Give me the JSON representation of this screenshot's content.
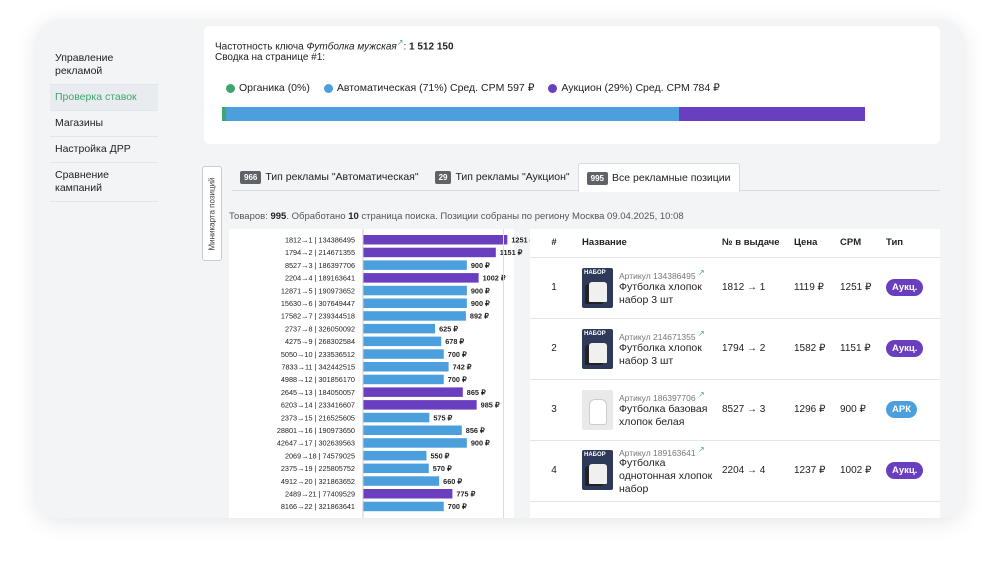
{
  "sidebar": {
    "items": [
      {
        "label": "Управление рекламой"
      },
      {
        "label": "Проверка ставок",
        "active": true
      },
      {
        "label": "Магазины"
      },
      {
        "label": "Настройка ДРР"
      },
      {
        "label": "Сравнение кампаний"
      }
    ]
  },
  "summary": {
    "freq_prefix": "Частотность ключа",
    "keyword": "Футболка мужская",
    "ext_icon": "↗",
    "freq_sep": ":",
    "freq_value": "1 512 150",
    "title": "Сводка на странице #1:",
    "legend": [
      {
        "label": "Органика (0%)",
        "color": "#3fa66b"
      },
      {
        "label": "Автоматическая (71%) Сред. CPM 597 ₽",
        "color": "#4a9fdc"
      },
      {
        "label": "Аукцион (29%) Сред. CPM 784 ₽",
        "color": "#6a3fbf"
      }
    ],
    "bar": [
      {
        "name": "Органика",
        "fraction": 0.006,
        "color": "#3fa66b"
      },
      {
        "name": "Автоматическая",
        "fraction": 0.705,
        "color": "#4a9fdc"
      },
      {
        "name": "Аукцион",
        "fraction": 0.289,
        "color": "#6a3fbf"
      }
    ]
  },
  "minimap": {
    "label": "Миникарта позиций"
  },
  "tabs": [
    {
      "badge": "966",
      "label": "Тип рекламы \"Автоматическая\""
    },
    {
      "badge": "29",
      "label": "Тип рекламы \"Аукцион\""
    },
    {
      "badge": "995",
      "label": "Все рекламные позиции",
      "active": true
    }
  ],
  "info": {
    "p1": "Товаров: ",
    "count": "995",
    "p2": ". Обработано ",
    "pages": "10",
    "p3": " страница поиска. Позиции собраны по региону Москва 09.04.2025, 10:08"
  },
  "colors": {
    "auction": "#6a3fbf",
    "auto": "#4a9fdc",
    "organic": "#3fa66b"
  },
  "chart_data": {
    "type": "bar",
    "orientation": "horizontal",
    "currency": "₽",
    "xlim": [
      0,
      1300
    ],
    "categories": [
      "1812→1 | 134386495",
      "1794→2 | 214671355",
      "8527→3 | 186397706",
      "2204→4 | 189163641",
      "12871→5 | 190973652",
      "15630→6 | 307649447",
      "17582→7 | 239344518",
      "2737→8 | 326050092",
      "4275→9 | 268302584",
      "5050→10 | 233536512",
      "7833→11 | 342442515",
      "4988→12 | 301856170",
      "2645→13 | 184050057",
      "6203→14 | 233416607",
      "2373→15 | 216525605",
      "28801→16 | 190973650",
      "42647→17 | 302639563",
      "2069→18 | 74579025",
      "2375→19 | 225805752",
      "4912→20 | 321863652",
      "2489→21 | 77409529",
      "8166→22 | 321863641"
    ],
    "values": [
      1251,
      1151,
      900,
      1002,
      900,
      900,
      892,
      625,
      678,
      700,
      742,
      700,
      865,
      985,
      575,
      856,
      900,
      550,
      570,
      660,
      775,
      700
    ],
    "types": [
      "auction",
      "auction",
      "auto",
      "auction",
      "auto",
      "auto",
      "auto",
      "auto",
      "auto",
      "auto",
      "auto",
      "auto",
      "auction",
      "auction",
      "auto",
      "auto",
      "auto",
      "auto",
      "auto",
      "auto",
      "auction",
      "auto"
    ]
  },
  "table": {
    "headers": [
      "#",
      "Название",
      "№ в выдаче",
      "Цена",
      "CPM",
      "Тип"
    ],
    "rows": [
      {
        "num": "1",
        "article": "Артикул 134386495",
        "name": "Футболка хлопок набор 3 шт",
        "pos": "1812 → 1",
        "price": "1119 ₽",
        "cpm": "1251 ₽",
        "type": "Аукц.",
        "type_color": "#6a3fbf",
        "img": "dark"
      },
      {
        "num": "2",
        "article": "Артикул 214671355",
        "name": "Футболка хлопок набор 3 шт",
        "pos": "1794 → 2",
        "price": "1582 ₽",
        "cpm": "1151 ₽",
        "type": "Аукц.",
        "type_color": "#6a3fbf",
        "img": "dark"
      },
      {
        "num": "3",
        "article": "Артикул 186397706",
        "name": "Футболка базовая хлопок белая",
        "pos": "8527 → 3",
        "price": "1296 ₽",
        "cpm": "900 ₽",
        "type": "АРК",
        "type_color": "#4a9fdc",
        "img": "light"
      },
      {
        "num": "4",
        "article": "Артикул 189163641",
        "name": "Футболка однотонная хлопок набор",
        "pos": "2204 → 4",
        "price": "1237 ₽",
        "cpm": "1002 ₽",
        "type": "Аукц.",
        "type_color": "#6a3fbf",
        "img": "dark"
      }
    ]
  }
}
